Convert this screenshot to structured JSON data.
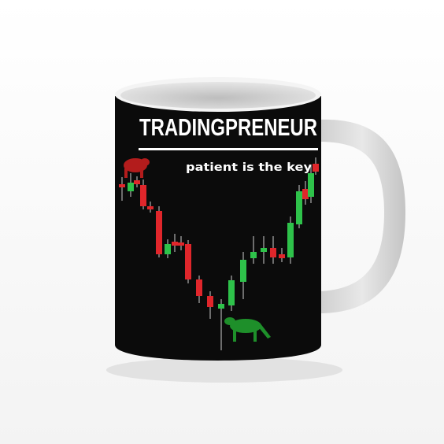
{
  "title": "TRADINGPRENEUR",
  "tagline": "patient is the key"
}
